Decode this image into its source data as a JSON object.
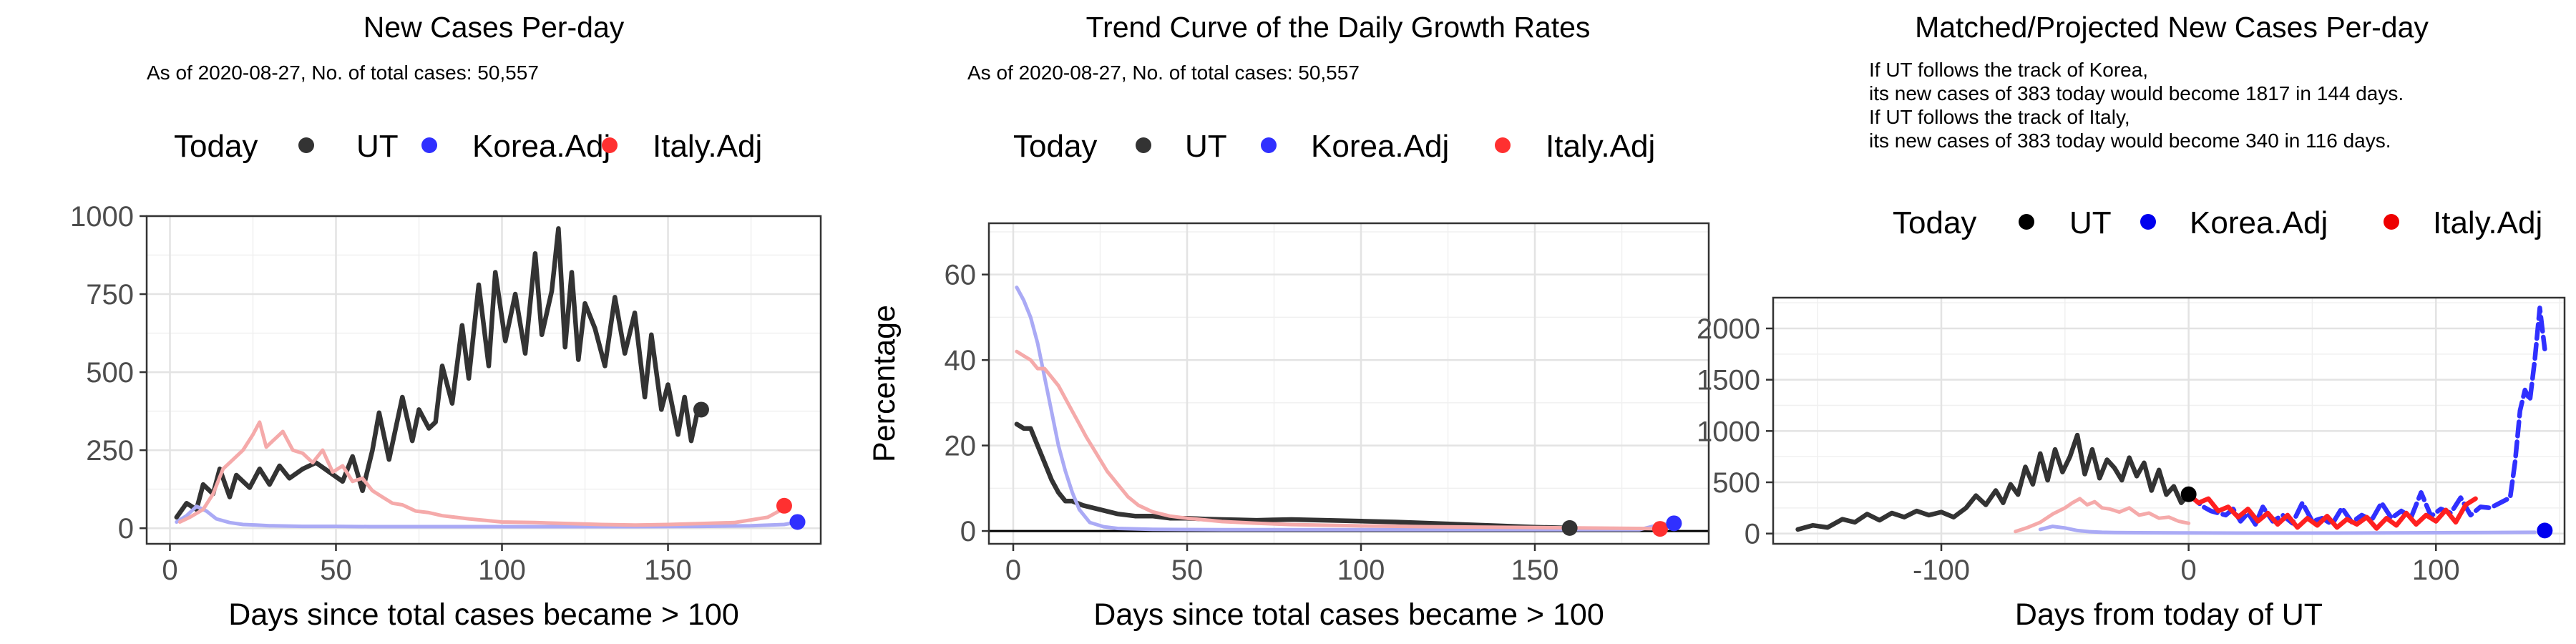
{
  "chart_data": [
    {
      "type": "line",
      "title": "New Cases Per-day",
      "subtitle": "As of 2020-08-27, No. of total cases: 50,557",
      "legend": {
        "position": "top",
        "title": "Today",
        "entries": [
          "UT",
          "Korea.Adj",
          "Italy.Adj"
        ]
      },
      "xlabel": "Days since total cases became > 100",
      "ylabel": "",
      "xlim": [
        -7,
        196
      ],
      "ylim": [
        -50,
        1000
      ],
      "xticks": [
        0,
        50,
        100,
        150
      ],
      "yticks": [
        0,
        250,
        500,
        750,
        1000
      ],
      "grid": true,
      "series": [
        {
          "name": "UT",
          "color": "#333333",
          "style": "solid",
          "x": [
            2,
            5,
            8,
            10,
            13,
            15,
            18,
            20,
            24,
            27,
            30,
            33,
            36,
            40,
            44,
            48,
            52,
            55,
            58,
            61,
            63,
            66,
            70,
            73,
            75,
            78,
            80,
            82,
            85,
            88,
            90,
            93,
            96,
            98,
            101,
            104,
            107,
            110,
            112,
            115,
            117,
            119,
            121,
            123,
            125,
            128,
            131,
            134,
            137,
            140,
            143,
            145,
            148,
            150,
            153,
            155,
            157,
            159,
            160
          ],
          "y": [
            35,
            80,
            60,
            140,
            110,
            190,
            100,
            170,
            130,
            190,
            140,
            200,
            160,
            190,
            210,
            180,
            150,
            230,
            120,
            250,
            370,
            220,
            420,
            280,
            380,
            320,
            340,
            520,
            400,
            650,
            480,
            780,
            520,
            820,
            600,
            750,
            560,
            880,
            620,
            760,
            960,
            580,
            820,
            540,
            720,
            640,
            520,
            740,
            560,
            690,
            420,
            620,
            380,
            460,
            300,
            420,
            280,
            380,
            380
          ]
        },
        {
          "name": "Korea.Adj",
          "color": "#aaaaf5",
          "style": "solid",
          "x": [
            2,
            5,
            8,
            11,
            14,
            18,
            22,
            26,
            30,
            40,
            50,
            60,
            80,
            100,
            120,
            140,
            160,
            175,
            185,
            190
          ],
          "y": [
            20,
            40,
            70,
            55,
            30,
            18,
            12,
            10,
            8,
            6,
            6,
            5,
            5,
            5,
            5,
            5,
            6,
            8,
            12,
            22
          ]
        },
        {
          "name": "Italy.Adj",
          "color": "#f5aaaa",
          "style": "solid",
          "x": [
            3,
            6,
            10,
            13,
            16,
            19,
            22,
            25,
            27,
            29,
            31,
            34,
            37,
            40,
            43,
            46,
            49,
            52,
            55,
            58,
            61,
            64,
            67,
            70,
            74,
            78,
            82,
            86,
            90,
            95,
            100,
            110,
            120,
            130,
            140,
            150,
            160,
            170,
            180,
            186
          ],
          "y": [
            20,
            35,
            60,
            110,
            190,
            220,
            250,
            300,
            340,
            260,
            280,
            310,
            250,
            240,
            210,
            250,
            180,
            200,
            150,
            160,
            120,
            100,
            80,
            75,
            55,
            50,
            40,
            35,
            30,
            25,
            20,
            18,
            15,
            12,
            10,
            12,
            15,
            18,
            35,
            70
          ]
        }
      ],
      "today_points": [
        {
          "name": "UT",
          "x": 160,
          "y": 380,
          "color": "#333333"
        },
        {
          "name": "Italy.Adj",
          "x": 185,
          "y": 72,
          "color": "#ff3030"
        },
        {
          "name": "Korea.Adj",
          "x": 189,
          "y": 20,
          "color": "#3030ff"
        }
      ]
    },
    {
      "type": "line",
      "title": "Trend Curve of the Daily Growth Rates",
      "subtitle": "As of 2020-08-27, No. of total cases: 50,557",
      "legend": {
        "position": "top",
        "title": "Today",
        "entries": [
          "UT",
          "Korea.Adj",
          "Italy.Adj"
        ]
      },
      "xlabel": "Days since total cases became > 100",
      "ylabel": "Percentage",
      "xlim": [
        -7,
        200
      ],
      "ylim": [
        -3,
        72
      ],
      "xticks": [
        0,
        50,
        100,
        150
      ],
      "yticks": [
        0,
        20,
        40,
        60
      ],
      "grid": true,
      "series": [
        {
          "name": "UT",
          "color": "#333333",
          "style": "solid",
          "x": [
            1,
            3,
            5,
            7,
            9,
            11,
            13,
            15,
            17,
            20,
            25,
            30,
            35,
            40,
            45,
            50,
            55,
            60,
            65,
            70,
            75,
            80,
            90,
            100,
            110,
            120,
            130,
            140,
            150,
            160
          ],
          "y": [
            25,
            24,
            24,
            20,
            16,
            12,
            9,
            7,
            7,
            6,
            5,
            4,
            3.5,
            3.5,
            3,
            3,
            2.8,
            2.7,
            2.6,
            2.5,
            2.6,
            2.7,
            2.5,
            2.3,
            2.1,
            1.8,
            1.5,
            1.2,
            0.9,
            0.7
          ]
        },
        {
          "name": "Korea.Adj",
          "color": "#aaaaf5",
          "style": "solid",
          "x": [
            1,
            3,
            5,
            7,
            9,
            11,
            13,
            15,
            17,
            19,
            22,
            26,
            30,
            40,
            60,
            100,
            140,
            180,
            186,
            190
          ],
          "y": [
            57,
            54,
            50,
            44,
            36,
            28,
            20,
            14,
            9,
            5,
            2,
            1,
            0.6,
            0.4,
            0.3,
            0.3,
            0.3,
            0.3,
            1.5,
            1.8
          ]
        },
        {
          "name": "Italy.Adj",
          "color": "#f5aaaa",
          "style": "solid",
          "x": [
            1,
            3,
            5,
            7,
            9,
            11,
            13,
            15,
            17,
            19,
            21,
            24,
            27,
            30,
            33,
            36,
            40,
            45,
            50,
            55,
            60,
            70,
            80,
            100,
            120,
            150,
            180,
            186
          ],
          "y": [
            42,
            41,
            40,
            38,
            38,
            36,
            34,
            31,
            28,
            25,
            22,
            18,
            14,
            11,
            8,
            6,
            4.5,
            3.5,
            3,
            2.6,
            2.2,
            1.8,
            1.5,
            1.2,
            1,
            0.8,
            0.6,
            0.5
          ]
        }
      ],
      "today_points": [
        {
          "name": "UT",
          "x": 160,
          "y": 0.7,
          "color": "#333333"
        },
        {
          "name": "Italy.Adj",
          "x": 186,
          "y": 0.5,
          "color": "#ff3030"
        },
        {
          "name": "Korea.Adj",
          "x": 190,
          "y": 1.8,
          "color": "#3030ff"
        }
      ]
    },
    {
      "type": "line",
      "title": "Matched/Projected New Cases Per-day",
      "annotations": [
        "If UT follows the track of Korea,",
        "its new cases of 383 today would become 1817 in 144 days.",
        "If UT follows the track of Italy,",
        "its new cases of 383 today would become 340 in 116 days."
      ],
      "legend": {
        "position": "top",
        "title": "Today",
        "entries": [
          "UT",
          "Korea.Adj",
          "Italy.Adj"
        ]
      },
      "xlabel": "Days from today of UT",
      "ylabel": "",
      "xlim": [
        -168,
        152
      ],
      "ylim": [
        -100,
        2300
      ],
      "xticks": [
        -100,
        0,
        100
      ],
      "yticks": [
        0,
        500,
        1000,
        1500,
        2000
      ],
      "grid": true,
      "series": [
        {
          "name": "UT",
          "color": "#333333",
          "style": "solid",
          "x": [
            -158,
            -152,
            -146,
            -140,
            -135,
            -130,
            -125,
            -120,
            -115,
            -110,
            -105,
            -100,
            -95,
            -90,
            -86,
            -82,
            -78,
            -75,
            -72,
            -69,
            -66,
            -63,
            -60,
            -57,
            -54,
            -51,
            -48,
            -45,
            -42,
            -39,
            -36,
            -33,
            -30,
            -27,
            -24,
            -21,
            -18,
            -15,
            -12,
            -9,
            -6,
            -3,
            0
          ],
          "y": [
            40,
            80,
            60,
            140,
            110,
            190,
            130,
            200,
            160,
            220,
            180,
            210,
            160,
            250,
            370,
            280,
            420,
            300,
            480,
            380,
            650,
            480,
            780,
            520,
            820,
            600,
            750,
            960,
            580,
            820,
            540,
            720,
            640,
            520,
            740,
            560,
            690,
            420,
            620,
            380,
            460,
            300,
            380
          ]
        },
        {
          "name": "Korea.Adj",
          "color": "#aaaaf5",
          "style": "solid",
          "x": [
            -60,
            -55,
            -50,
            -45,
            -40,
            -35,
            -30,
            -20,
            0,
            20,
            40,
            60,
            80,
            100,
            120,
            140
          ],
          "y": [
            40,
            70,
            55,
            30,
            18,
            12,
            10,
            8,
            6,
            5,
            5,
            5,
            6,
            8,
            10,
            12
          ]
        },
        {
          "name": "Italy.Adj",
          "color": "#f5aaaa",
          "style": "solid",
          "x": [
            -70,
            -65,
            -60,
            -55,
            -50,
            -47,
            -44,
            -41,
            -38,
            -35,
            -32,
            -28,
            -24,
            -20,
            -16,
            -12,
            -8,
            -4,
            0
          ],
          "y": [
            20,
            60,
            110,
            190,
            250,
            300,
            340,
            280,
            310,
            250,
            240,
            210,
            250,
            180,
            200,
            150,
            160,
            120,
            100
          ]
        },
        {
          "name": "Korea.Adj projected",
          "color": "#3030ff",
          "style": "dashed",
          "x": [
            0,
            3,
            6,
            9,
            12,
            15,
            18,
            21,
            24,
            27,
            30,
            34,
            38,
            42,
            46,
            50,
            54,
            58,
            62,
            66,
            70,
            74,
            78,
            82,
            86,
            90,
            94,
            98,
            102,
            106,
            110,
            114,
            118,
            122,
            126,
            130,
            132,
            134,
            136,
            138,
            140,
            142,
            144
          ],
          "y": [
            380,
            320,
            260,
            220,
            200,
            180,
            240,
            120,
            200,
            90,
            260,
            120,
            180,
            100,
            300,
            120,
            150,
            90,
            250,
            110,
            180,
            130,
            300,
            150,
            220,
            160,
            400,
            170,
            240,
            200,
            350,
            180,
            260,
            250,
            300,
            350,
            700,
            1200,
            1400,
            1300,
            1700,
            2200,
            1800
          ]
        },
        {
          "name": "Italy.Adj projected",
          "color": "#ff2020",
          "style": "solid",
          "x": [
            0,
            4,
            8,
            12,
            16,
            20,
            24,
            28,
            32,
            36,
            40,
            44,
            48,
            52,
            56,
            60,
            64,
            68,
            72,
            76,
            80,
            84,
            88,
            92,
            96,
            100,
            104,
            108,
            112,
            116
          ],
          "y": [
            380,
            300,
            340,
            220,
            260,
            160,
            240,
            120,
            200,
            90,
            180,
            60,
            150,
            80,
            170,
            60,
            140,
            90,
            160,
            50,
            150,
            80,
            200,
            90,
            180,
            120,
            230,
            110,
            280,
            340
          ]
        }
      ],
      "today_points": [
        {
          "name": "UT",
          "x": 0,
          "y": 383,
          "color": "#000000"
        },
        {
          "name": "Korea.Adj",
          "x": 144,
          "y": 30,
          "color": "#0000ee"
        }
      ]
    }
  ]
}
